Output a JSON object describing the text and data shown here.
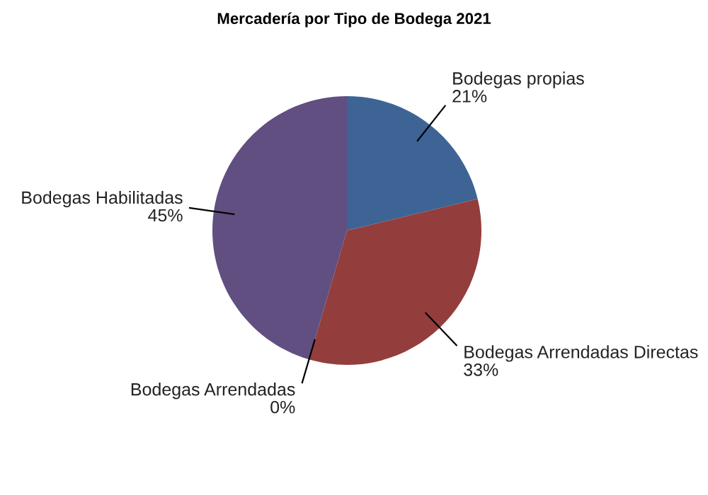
{
  "chart_data": {
    "type": "pie",
    "title": "Mercadería por Tipo de Bodega 2021",
    "categories": [
      "Bodegas propias",
      "Bodegas Arrendadas Directas",
      "Bodegas Arrendadas",
      "Bodegas Habilitadas"
    ],
    "values": [
      21,
      33,
      0,
      45
    ],
    "value_labels": [
      "21%",
      "33%",
      "0%",
      "45%"
    ],
    "colors": [
      "#3d6494",
      "#933e3c",
      "#77933c",
      "#604f80"
    ]
  }
}
